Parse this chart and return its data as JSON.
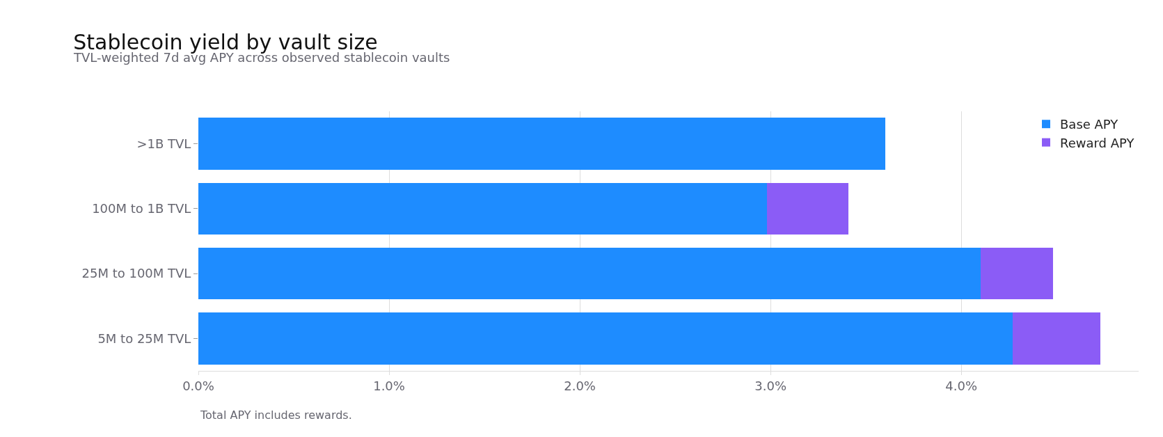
{
  "chart_data": {
    "type": "bar",
    "orientation": "horizontal",
    "stacked": true,
    "title": "Stablecoin yield by vault size",
    "subtitle": "TVL-weighted 7d avg APY across observed stablecoin vaults",
    "categories": [
      ">1B TVL",
      "100M to 1B TVL",
      "25M to 100M TVL",
      "5M to 25M TVL"
    ],
    "series": [
      {
        "name": "Base APY",
        "color": "#1e8cff",
        "values": [
          3.6,
          2.98,
          4.1,
          4.27
        ]
      },
      {
        "name": "Reward APY",
        "color": "#8b5cf6",
        "values": [
          null,
          0.43,
          0.38,
          0.46
        ]
      }
    ],
    "xlim": [
      0,
      4.93
    ],
    "xticks": [
      {
        "value": 0,
        "label": "0.0%"
      },
      {
        "value": 1,
        "label": "1.0%"
      },
      {
        "value": 2,
        "label": "2.0%"
      },
      {
        "value": 3,
        "label": "3.0%"
      },
      {
        "value": 4,
        "label": "4.0%"
      }
    ],
    "grid": "x",
    "legend": "top right",
    "annotations": [
      "Total APY includes rewards."
    ]
  }
}
